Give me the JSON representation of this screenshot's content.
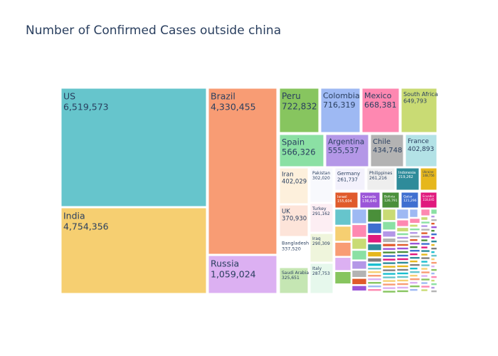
{
  "chart_data": {
    "type": "treemap",
    "title": "Number of Confirmed Cases outside china",
    "items": [
      {
        "name": "US",
        "value": 6519573,
        "value_text": "6,519,573",
        "color": "#66c5cc"
      },
      {
        "name": "India",
        "value": 4754356,
        "value_text": "4,754,356",
        "color": "#f6cf71"
      },
      {
        "name": "Brazil",
        "value": 4330455,
        "value_text": "4,330,455",
        "color": "#f89c74"
      },
      {
        "name": "Russia",
        "value": 1059024,
        "value_text": "1,059,024",
        "color": "#dcb0f2"
      },
      {
        "name": "Peru",
        "value": 722832,
        "value_text": "722,832",
        "color": "#87c55f"
      },
      {
        "name": "Colombia",
        "value": 716319,
        "value_text": "716,319",
        "color": "#9eb9f3"
      },
      {
        "name": "Mexico",
        "value": 668381,
        "value_text": "668,381",
        "color": "#fe88b1"
      },
      {
        "name": "South Africa",
        "value": 649793,
        "value_text": "649,793",
        "color": "#c9db74"
      },
      {
        "name": "Spain",
        "value": 566326,
        "value_text": "566,326",
        "color": "#8be0a4"
      },
      {
        "name": "Argentina",
        "value": 555537,
        "value_text": "555,537",
        "color": "#b497e7"
      },
      {
        "name": "Chile",
        "value": 434748,
        "value_text": "434,748",
        "color": "#b3b3b3"
      },
      {
        "name": "France",
        "value": 402893,
        "value_text": "402,893",
        "color": "#b3e2e6"
      },
      {
        "name": "Iran",
        "value": 402029,
        "value_text": "402,029",
        "color": "#fdf0dc"
      },
      {
        "name": "Pakistan",
        "value": 302020,
        "value_text": "302,020",
        "color": "#f8f9fd"
      },
      {
        "name": "Germany",
        "value": 261737,
        "value_text": "261,737",
        "color": "#f3f1fc"
      },
      {
        "name": "Philippines",
        "value": 261216,
        "value_text": "261,216",
        "color": "#eeeeee"
      },
      {
        "name": "Indonesia",
        "value": 219262,
        "value_text": "219,262",
        "color": "#2e8b9a"
      },
      {
        "name": "Ukraine",
        "value": 148756,
        "value_text": "148,756",
        "color": "#e6b71c"
      },
      {
        "name": "UK",
        "value": 370930,
        "value_text": "370,930",
        "color": "#fde4d9"
      },
      {
        "name": "Turkey",
        "value": 291162,
        "value_text": "291,162",
        "color": "#fdeef3"
      },
      {
        "name": "Israel",
        "value": 155604,
        "value_text": "155,604",
        "color": "#e05a2b"
      },
      {
        "name": "Canada",
        "value": 136640,
        "value_text": "136,640",
        "color": "#9b55d8"
      },
      {
        "name": "Bolivia",
        "value": 126791,
        "value_text": "126,791",
        "color": "#4a8f3a"
      },
      {
        "name": "Qatar",
        "value": 121296,
        "value_text": "121,296",
        "color": "#3f6fd0"
      },
      {
        "name": "Ecuador",
        "value": 118045,
        "value_text": "118,045",
        "color": "#e0197d"
      },
      {
        "name": "Bangladesh",
        "value": 337520,
        "value_text": "337,520",
        "color": "#ffffff"
      },
      {
        "name": "Iraq",
        "value": 290309,
        "value_text": "290,309",
        "color": "#eff5dc"
      },
      {
        "name": "Saudi Arabia",
        "value": 325651,
        "value_text": "325,651",
        "color": "#c5e6b3"
      },
      {
        "name": "Italy",
        "value": 287753,
        "value_text": "287,753",
        "color": "#e6f8ec"
      }
    ]
  }
}
